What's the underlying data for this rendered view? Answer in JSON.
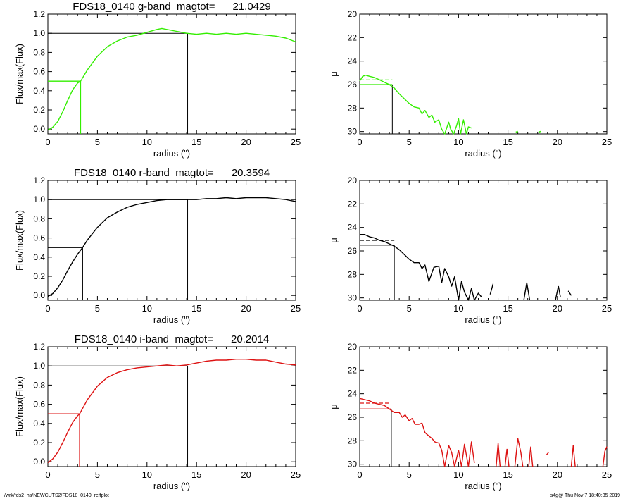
{
  "footer": {
    "path": "/wrk/fds2_hs/NEWCUTS2/FDS18_0140_reffplot",
    "stamp": "s4g@  Thu Nov  7 18:40:35 2019"
  },
  "colors": {
    "g": "#33ee00",
    "r": "#000000",
    "i": "#dd1111",
    "frame": "#000000"
  },
  "chart_data": [
    {
      "type": "line",
      "panel": "g-growth",
      "title": "FDS18_0140 g-band  magtot=      21.0429",
      "xlabel": "radius (\")",
      "ylabel": "Flux/max(Flux)",
      "xlim": [
        0,
        25
      ],
      "ylim": [
        -0.05,
        1.2
      ],
      "xticks": [
        0,
        5,
        10,
        15,
        20,
        25
      ],
      "yticks": [
        0.0,
        0.2,
        0.4,
        0.6,
        0.8,
        1.0,
        1.2
      ],
      "ytick_labels": [
        "0.0",
        "0.2",
        "0.4",
        "0.6",
        "0.8",
        "1.0",
        "1.2"
      ],
      "series": [
        {
          "color": "#33ee00",
          "x": [
            0,
            0.5,
            1,
            1.5,
            2,
            2.5,
            3,
            3.3,
            4,
            5,
            6,
            7,
            8,
            9,
            10,
            11,
            11.5,
            12,
            13,
            14,
            15,
            16,
            17,
            18,
            19,
            20,
            21,
            22,
            23,
            24,
            25
          ],
          "y": [
            -0.01,
            0.02,
            0.08,
            0.18,
            0.3,
            0.41,
            0.48,
            0.5,
            0.62,
            0.76,
            0.86,
            0.92,
            0.96,
            0.98,
            1.01,
            1.04,
            1.05,
            1.04,
            1.02,
            1.0,
            0.99,
            1.0,
            0.99,
            1.0,
            0.99,
            1.0,
            0.99,
            0.98,
            0.97,
            0.95,
            0.91
          ]
        }
      ],
      "refs": {
        "r_half": 3.3,
        "r_total": 14.1,
        "half_color": "#33ee00"
      }
    },
    {
      "type": "line",
      "panel": "g-profile",
      "title": "",
      "xlabel": "radius (\")",
      "ylabel": "μ",
      "xlim": [
        0,
        25
      ],
      "ylim": [
        30.2,
        20
      ],
      "xticks": [
        0,
        5,
        10,
        15,
        20,
        25
      ],
      "yticks": [
        20,
        22,
        24,
        26,
        28,
        30
      ],
      "ytick_labels": [
        "20",
        "22",
        "24",
        "26",
        "28",
        "30"
      ],
      "series": [
        {
          "color": "#33ee00",
          "x": [
            0,
            0.3,
            0.6,
            1,
            1.5,
            2,
            2.5,
            3,
            3.5,
            4,
            4.5,
            5,
            5.5,
            6,
            6.3,
            6.6,
            7,
            7.3,
            7.6,
            8,
            8.3,
            8.6,
            9,
            9.2,
            9.5,
            9.8,
            10,
            10.2,
            10.5,
            10.8,
            11,
            11.3
          ],
          "y": [
            25.7,
            25.3,
            25.2,
            25.3,
            25.4,
            25.6,
            25.8,
            26.0,
            26.3,
            26.8,
            27.2,
            27.6,
            27.9,
            28.0,
            28.5,
            28.2,
            28.8,
            28.6,
            29.2,
            29.0,
            29.8,
            30.2,
            29.2,
            29.8,
            30.2,
            29.5,
            28.9,
            30.2,
            29.0,
            30.2,
            29.6,
            29.7
          ]
        }
      ],
      "markers": [
        {
          "x": 15.9,
          "y": 30.05
        },
        {
          "x": 18.2,
          "y": 30.05
        }
      ],
      "refs": {
        "r_eff": 3.3,
        "mu_eff": 26.0,
        "mu_mean": 25.6,
        "ref_color": "#33ee00",
        "drop_color": "#000000"
      }
    },
    {
      "type": "line",
      "panel": "r-growth",
      "title": "FDS18_0140 r-band  magtot=      20.3594",
      "xlabel": "radius (\")",
      "ylabel": "Flux/max(Flux)",
      "xlim": [
        0,
        25
      ],
      "ylim": [
        -0.05,
        1.2
      ],
      "xticks": [
        0,
        5,
        10,
        15,
        20,
        25
      ],
      "yticks": [
        0.0,
        0.2,
        0.4,
        0.6,
        0.8,
        1.0,
        1.2
      ],
      "ytick_labels": [
        "0.0",
        "0.2",
        "0.4",
        "0.6",
        "0.8",
        "1.0",
        "1.2"
      ],
      "series": [
        {
          "color": "#000000",
          "x": [
            0,
            0.5,
            1,
            1.5,
            2,
            2.5,
            3,
            3.5,
            4,
            5,
            6,
            7,
            8,
            9,
            10,
            11,
            12,
            13,
            14,
            15,
            16,
            17,
            18,
            19,
            20,
            21,
            22,
            23,
            24,
            25
          ],
          "y": [
            -0.01,
            0.02,
            0.08,
            0.16,
            0.26,
            0.35,
            0.43,
            0.5,
            0.58,
            0.71,
            0.81,
            0.87,
            0.92,
            0.95,
            0.97,
            0.99,
            1.0,
            1.0,
            1.0,
            1.0,
            1.01,
            1.01,
            1.02,
            1.01,
            1.02,
            1.02,
            1.02,
            1.01,
            1.0,
            0.98
          ]
        }
      ],
      "refs": {
        "r_half": 3.5,
        "r_total": 14.1,
        "half_color": "#000000"
      }
    },
    {
      "type": "line",
      "panel": "r-profile",
      "title": "",
      "xlabel": "radius (\")",
      "ylabel": "μ",
      "xlim": [
        0,
        25
      ],
      "ylim": [
        30.2,
        20
      ],
      "xticks": [
        0,
        5,
        10,
        15,
        20,
        25
      ],
      "yticks": [
        20,
        22,
        24,
        26,
        28,
        30
      ],
      "ytick_labels": [
        "20",
        "22",
        "24",
        "26",
        "28",
        "30"
      ],
      "series": [
        {
          "color": "#000000",
          "x": [
            0,
            0.5,
            1,
            1.5,
            2,
            2.5,
            3,
            3.5,
            4,
            4.5,
            5,
            5.5,
            6,
            6.3,
            6.6,
            7,
            7.5,
            8,
            8.3,
            8.6,
            9,
            9.3,
            9.6,
            10,
            10.3,
            10.6,
            11,
            11.3,
            11.6,
            12,
            12.3
          ],
          "y": [
            24.6,
            24.6,
            24.8,
            24.9,
            25.1,
            25.2,
            25.4,
            25.6,
            25.9,
            26.3,
            26.7,
            27.0,
            27.0,
            27.5,
            27.2,
            28.6,
            27.4,
            27.3,
            28.7,
            27.5,
            28.2,
            29.0,
            28.2,
            30.2,
            28.6,
            29.5,
            30.2,
            29.2,
            30.2,
            29.6,
            29.9
          ]
        }
      ],
      "fragments": [
        {
          "x": [
            13.2,
            13.5
          ],
          "y": [
            29.7,
            28.8
          ]
        },
        {
          "x": [
            16.6,
            16.9,
            17.2
          ],
          "y": [
            30.2,
            28.7,
            30.2
          ]
        },
        {
          "x": [
            19.8,
            20.1,
            20.3
          ],
          "y": [
            30.2,
            29.0,
            29.9
          ]
        },
        {
          "x": [
            21.1,
            21.4
          ],
          "y": [
            29.4,
            29.8
          ]
        }
      ],
      "refs": {
        "r_eff": 3.5,
        "mu_eff": 25.5,
        "mu_mean": 25.1,
        "ref_color": "#000000",
        "drop_color": "#000000"
      }
    },
    {
      "type": "line",
      "panel": "i-growth",
      "title": "FDS18_0140 i-band  magtot=      20.2014",
      "xlabel": "radius (\")",
      "ylabel": "Flux/max(Flux)",
      "xlim": [
        0,
        25
      ],
      "ylim": [
        -0.05,
        1.2
      ],
      "xticks": [
        0,
        5,
        10,
        15,
        20,
        25
      ],
      "yticks": [
        0.0,
        0.2,
        0.4,
        0.6,
        0.8,
        1.0,
        1.2
      ],
      "ytick_labels": [
        "0.0",
        "0.2",
        "0.4",
        "0.6",
        "0.8",
        "1.0",
        "1.2"
      ],
      "series": [
        {
          "color": "#dd1111",
          "x": [
            0,
            0.5,
            1,
            1.5,
            2,
            2.5,
            3,
            3.2,
            4,
            5,
            6,
            7,
            8,
            9,
            10,
            11,
            12,
            13,
            14,
            15,
            16,
            17,
            18,
            19,
            20,
            21,
            22,
            23,
            24,
            25
          ],
          "y": [
            -0.01,
            0.03,
            0.1,
            0.2,
            0.31,
            0.41,
            0.48,
            0.5,
            0.65,
            0.79,
            0.88,
            0.93,
            0.96,
            0.98,
            0.99,
            1.0,
            1.01,
            1.0,
            1.01,
            1.03,
            1.05,
            1.06,
            1.06,
            1.07,
            1.07,
            1.06,
            1.06,
            1.04,
            1.02,
            1.01
          ]
        }
      ],
      "refs": {
        "r_half": 3.2,
        "r_total": 14.1,
        "half_color": "#dd1111"
      }
    },
    {
      "type": "line",
      "panel": "i-profile",
      "title": "",
      "xlabel": "radius (\")",
      "ylabel": "μ",
      "xlim": [
        0,
        25
      ],
      "ylim": [
        30.2,
        20
      ],
      "xticks": [
        0,
        5,
        10,
        15,
        20,
        25
      ],
      "yticks": [
        20,
        22,
        24,
        26,
        28,
        30
      ],
      "ytick_labels": [
        "20",
        "22",
        "24",
        "26",
        "28",
        "30"
      ],
      "series": [
        {
          "color": "#dd1111",
          "x": [
            0,
            0.5,
            1,
            1.5,
            2,
            2.5,
            3,
            3.5,
            4,
            4.3,
            4.6,
            5,
            5.3,
            5.6,
            6,
            6.3,
            6.6,
            7,
            7.3,
            7.6,
            8,
            8.3,
            8.6,
            9,
            9.3,
            9.6,
            10,
            10.3,
            10.6,
            11,
            11.3,
            11.6
          ],
          "y": [
            24.4,
            24.5,
            24.6,
            24.8,
            24.9,
            25.0,
            25.3,
            25.6,
            25.6,
            26.0,
            25.8,
            26.3,
            26.1,
            26.6,
            26.6,
            26.5,
            27.3,
            27.6,
            27.8,
            28.1,
            28.2,
            28.8,
            30.2,
            28.4,
            29.0,
            30.2,
            28.8,
            30.2,
            28.3,
            30.2,
            28.1,
            29.9
          ]
        }
      ],
      "fragments": [
        {
          "x": [
            13.8,
            14.0,
            14.2
          ],
          "y": [
            30.2,
            28.2,
            30.2
          ]
        },
        {
          "x": [
            14.7,
            14.9,
            15.1
          ],
          "y": [
            30.2,
            28.7,
            30.2
          ]
        },
        {
          "x": [
            15.7,
            16.0,
            16.3,
            16.5
          ],
          "y": [
            30.2,
            27.8,
            29.0,
            30.2
          ]
        },
        {
          "x": [
            17.1,
            17.3,
            17.5
          ],
          "y": [
            30.2,
            28.5,
            30.2
          ]
        },
        {
          "x": [
            18.9,
            19.1
          ],
          "y": [
            29.2,
            29.0
          ]
        },
        {
          "x": [
            21.4,
            21.6,
            21.8
          ],
          "y": [
            30.2,
            28.4,
            30.2
          ]
        },
        {
          "x": [
            24.6,
            24.8,
            25.0
          ],
          "y": [
            30.2,
            28.9,
            28.5
          ]
        }
      ],
      "refs": {
        "r_eff": 3.2,
        "mu_eff": 25.3,
        "mu_mean": 24.8,
        "ref_color": "#dd1111",
        "drop_color": "#000000"
      }
    }
  ]
}
